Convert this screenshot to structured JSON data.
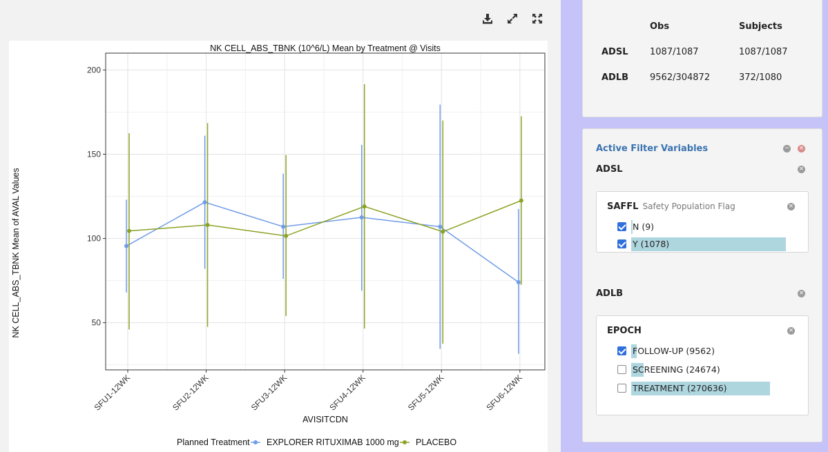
{
  "toolbar": {
    "download_icon": "download-icon",
    "expand_icon": "expand-icon",
    "fullscreen_icon": "fullscreen-icon"
  },
  "chart_data": {
    "type": "line",
    "title": "NK CELL_ABS_TBNK (10^6/L) Mean by Treatment @ Visits",
    "xlabel": "AVISITCDN",
    "ylabel": "NK CELL_ABS_TBNK Mean of AVAL Values",
    "categories": [
      "SFU1-12WK",
      "SFU2-12WK",
      "SFU3-12WK",
      "SFU4-12WK",
      "SFU5-12WK",
      "SFU6-12WK"
    ],
    "ylim": [
      22,
      210
    ],
    "yticks": [
      50,
      100,
      150,
      200
    ],
    "grid": true,
    "legend": {
      "title": "Planned Treatment",
      "position": "bottom"
    },
    "series": [
      {
        "name": "EXPLORER RITUXIMAB 1000 mg",
        "color": "#6f9be8",
        "values": [
          95.5,
          121.5,
          107,
          112.5,
          107,
          74
        ],
        "lower": [
          68,
          82,
          76,
          69,
          34.5,
          31.5
        ],
        "upper": [
          123,
          161,
          138.5,
          155.5,
          179.5,
          117.5
        ]
      },
      {
        "name": "PLACEBO",
        "color": "#8aa323",
        "values": [
          104.5,
          108,
          101.5,
          119,
          104,
          122.5
        ],
        "lower": [
          46,
          47.5,
          54,
          46.5,
          37.5,
          72.5
        ],
        "upper": [
          162.5,
          168.5,
          149.5,
          191.5,
          170,
          172.5
        ]
      }
    ]
  },
  "counts": {
    "headers": [
      "Obs",
      "Subjects"
    ],
    "rows": [
      {
        "name": "ADSL",
        "obs": "1087/1087",
        "subjects": "1087/1087"
      },
      {
        "name": "ADLB",
        "obs": "9562/304872",
        "subjects": "372/1080"
      }
    ]
  },
  "filters": {
    "title": "Active Filter Variables",
    "collapse_icon": "minus-circle-icon",
    "remove_all_icon": "close-circle-icon",
    "adsl": {
      "label": "ADSL",
      "card": {
        "var": "SAFFL",
        "label": "Safety Population Flag",
        "options": [
          {
            "text": "N (9)",
            "checked": true,
            "share": 0.008
          },
          {
            "text": "Y (1078)",
            "checked": true,
            "share": 1.0
          }
        ]
      }
    },
    "adlb": {
      "label": "ADLB",
      "card": {
        "var": "EPOCH",
        "label": "",
        "options": [
          {
            "text": "FOLLOW-UP (9562)",
            "checked": true,
            "share": 0.035
          },
          {
            "text": "SCREENING (24674)",
            "checked": false,
            "share": 0.091
          },
          {
            "text": "TREATMENT (270636)",
            "checked": false,
            "share": 1.0
          }
        ]
      }
    }
  }
}
